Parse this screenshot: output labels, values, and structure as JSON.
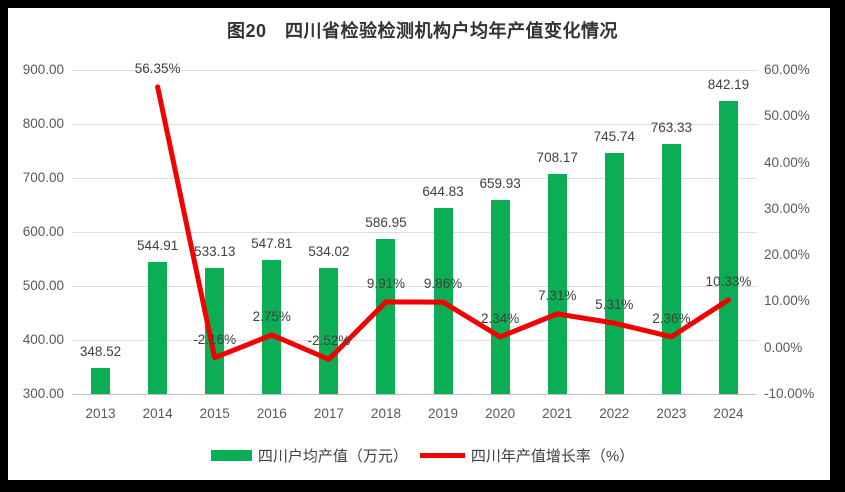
{
  "title": "图20　四川省检验检测机构户均年产值变化情况",
  "chart_data": {
    "type": "bar+line",
    "categories": [
      "2013",
      "2014",
      "2015",
      "2016",
      "2017",
      "2018",
      "2019",
      "2020",
      "2021",
      "2022",
      "2023",
      "2024"
    ],
    "series": [
      {
        "name": "四川户均产值（万元）",
        "type": "bar",
        "axis": "left",
        "color": "#0bae54",
        "values": [
          348.52,
          544.91,
          533.13,
          547.81,
          534.02,
          586.95,
          644.83,
          659.93,
          708.17,
          745.74,
          763.33,
          842.19
        ],
        "labels": [
          "348.52",
          "544.91",
          "533.13",
          "547.81",
          "534.02",
          "586.95",
          "644.83",
          "659.93",
          "708.17",
          "745.74",
          "763.33",
          "842.19"
        ]
      },
      {
        "name": "四川年产值增长率（%）",
        "type": "line",
        "axis": "right",
        "color": "#f40000",
        "values": [
          null,
          56.35,
          -2.16,
          2.75,
          -2.52,
          9.91,
          9.86,
          2.34,
          7.31,
          5.31,
          2.36,
          10.33
        ],
        "labels": [
          null,
          "56.35%",
          "-2.16%",
          "2.75%",
          "-2.52%",
          "9.91%",
          "9.86%",
          "2.34%",
          "7.31%",
          "5.31%",
          "2.36%",
          "10.33%"
        ]
      }
    ],
    "left_axis": {
      "min": 300,
      "max": 900,
      "step": 100,
      "tick_labels": [
        "900.00",
        "800.00",
        "700.00",
        "600.00",
        "500.00",
        "400.00",
        "300.00"
      ]
    },
    "right_axis": {
      "min": -10,
      "max": 60,
      "step": 10,
      "tick_labels": [
        "60.00%",
        "50.00%",
        "40.00%",
        "30.00%",
        "20.00%",
        "10.00%",
        "0.00%",
        "-10.00%"
      ]
    },
    "grid": true,
    "legend_position": "bottom"
  },
  "colors": {
    "frame": "#000000",
    "chart_background": "#ffffff",
    "gridline": "#dedede",
    "axis_line": "#bfbfbf",
    "axis_text": "#595959",
    "data_label_text": "#404040",
    "title_text": "#333333",
    "bar_green": "#0bae54",
    "line_red": "#f40000"
  }
}
